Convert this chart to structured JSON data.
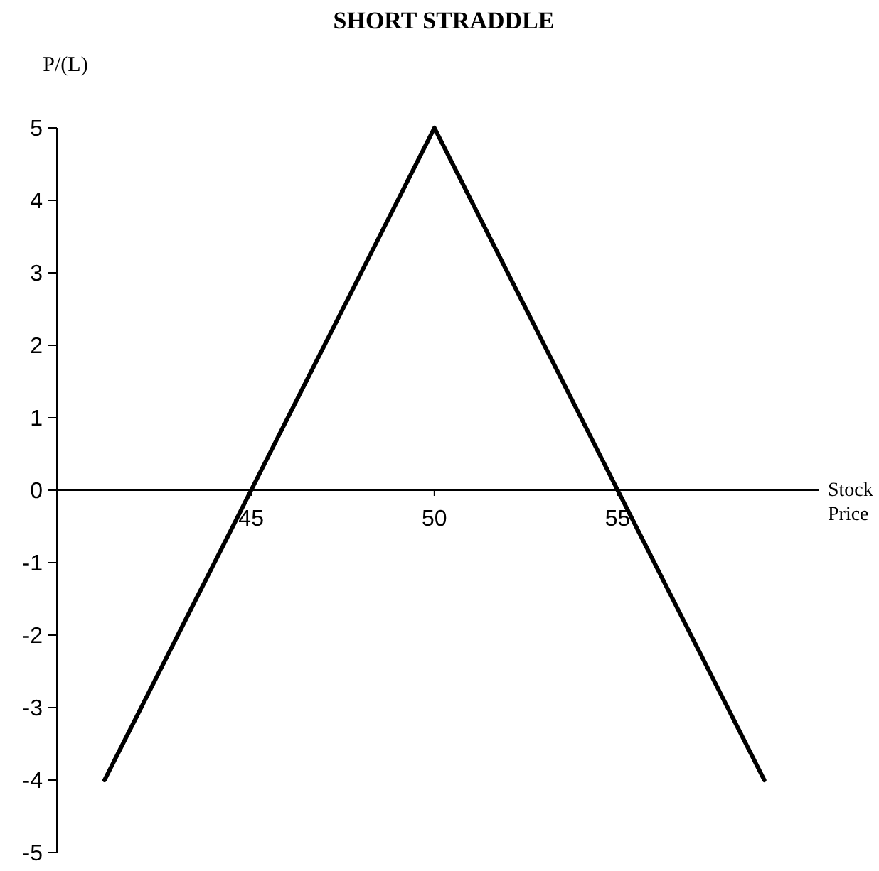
{
  "chart_data": {
    "type": "line",
    "title": "SHORT STRADDLE",
    "xlabel": "Stock Price",
    "ylabel": "P/(L)",
    "x": [
      41,
      42,
      43,
      44,
      45,
      46,
      47,
      48,
      49,
      50,
      51,
      52,
      53,
      54,
      55,
      56,
      57,
      58,
      59
    ],
    "series": [
      {
        "color": "#000000",
        "values": [
          -4,
          -3,
          -2,
          -1,
          0,
          1,
          2,
          3,
          4,
          5,
          4,
          3,
          2,
          1,
          0,
          -1,
          -2,
          -3,
          -4
        ]
      }
    ],
    "xlim": [
      39.7,
      60.5
    ],
    "xticks": [
      45,
      50,
      55
    ],
    "ylim": [
      -5,
      5
    ],
    "yticks": [
      -5,
      -4,
      -3,
      -2,
      -1,
      0,
      1,
      2,
      3,
      4,
      5
    ],
    "grid": false,
    "marker": "none",
    "line_style": "solid"
  }
}
